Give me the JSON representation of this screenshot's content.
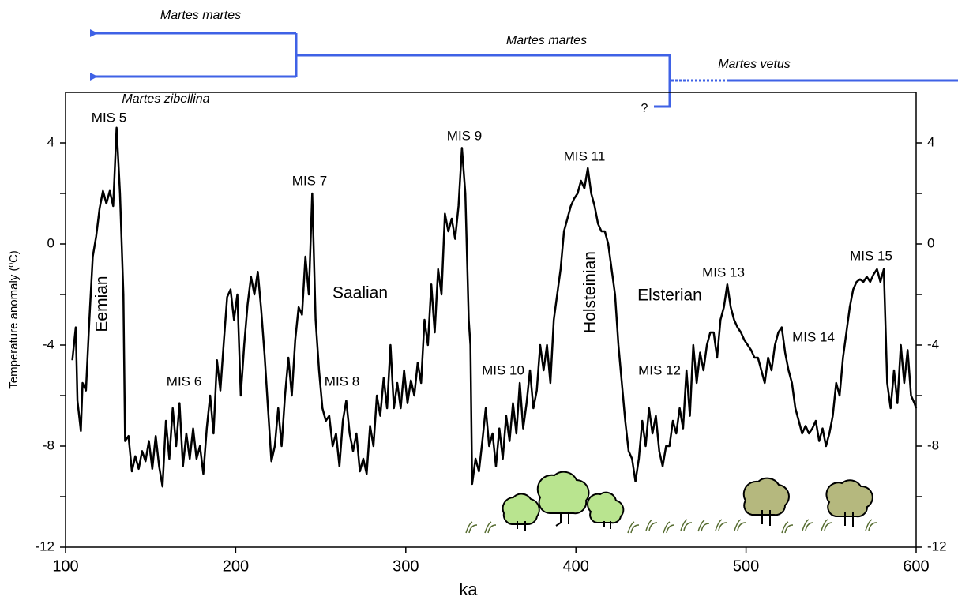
{
  "chart_data": {
    "type": "line",
    "x_label": "ka",
    "y_label": "Temperature anomaly (ºC)",
    "xlim": [
      100,
      600
    ],
    "xticks": [
      100,
      200,
      300,
      400,
      500,
      600
    ],
    "ylim": [
      -12,
      6
    ],
    "yticks": [
      -12,
      -8,
      -4,
      0,
      4
    ],
    "yminorticks": [
      -10,
      -6,
      -2,
      2
    ],
    "right_axis_mirror": true,
    "series": [
      {
        "color": "#000000",
        "x": [
          104,
          106,
          107,
          109,
          110,
          112,
          114,
          116,
          118,
          120,
          122,
          124,
          126,
          128,
          130,
          132,
          134,
          135,
          137,
          139,
          141,
          143,
          145,
          147,
          149,
          151,
          153,
          155,
          157,
          159,
          161,
          163,
          165,
          167,
          169,
          171,
          173,
          175,
          177,
          179,
          181,
          183,
          185,
          187,
          189,
          191,
          193,
          195,
          197,
          199,
          201,
          203,
          205,
          207,
          209,
          211,
          213,
          215,
          217,
          219,
          221,
          223,
          225,
          227,
          229,
          231,
          233,
          235,
          237,
          239,
          241,
          243,
          245,
          247,
          249,
          251,
          253,
          255,
          257,
          259,
          261,
          263,
          265,
          267,
          269,
          271,
          273,
          275,
          277,
          279,
          281,
          283,
          285,
          287,
          289,
          291,
          293,
          295,
          297,
          299,
          301,
          303,
          305,
          307,
          309,
          311,
          313,
          315,
          317,
          319,
          321,
          323,
          325,
          327,
          329,
          331,
          333,
          335,
          337,
          338,
          339,
          341,
          343,
          345,
          347,
          349,
          351,
          353,
          355,
          357,
          359,
          361,
          363,
          365,
          367,
          369,
          371,
          373,
          375,
          377,
          379,
          381,
          383,
          385,
          387,
          389,
          391,
          393,
          395,
          397,
          399,
          401,
          403,
          405,
          407,
          409,
          411,
          413,
          415,
          417,
          419,
          421,
          423,
          425,
          427,
          429,
          431,
          433,
          435,
          437,
          439,
          441,
          443,
          445,
          447,
          449,
          451,
          453,
          455,
          457,
          459,
          461,
          463,
          465,
          467,
          469,
          471,
          473,
          475,
          477,
          479,
          481,
          483,
          485,
          487,
          489,
          491,
          493,
          495,
          497,
          499,
          501,
          503,
          505,
          507,
          509,
          511,
          513,
          515,
          517,
          519,
          521,
          523,
          525,
          527,
          529,
          531,
          533,
          535,
          537,
          539,
          541,
          543,
          545,
          547,
          549,
          551,
          553,
          555,
          557,
          559,
          561,
          563,
          565,
          567,
          569,
          571,
          573,
          575,
          577,
          579,
          581,
          583,
          585,
          587,
          589,
          591,
          593,
          595,
          597,
          599,
          600
        ],
        "values": [
          -4.6,
          -3.3,
          -6.2,
          -7.4,
          -5.5,
          -5.8,
          -3.0,
          -0.5,
          0.3,
          1.4,
          2.1,
          1.6,
          2.1,
          1.5,
          4.6,
          2.0,
          -2,
          -7.8,
          -7.6,
          -9.0,
          -8.4,
          -8.9,
          -8.2,
          -8.6,
          -7.8,
          -8.9,
          -7.6,
          -8.8,
          -9.6,
          -7.0,
          -8.5,
          -6.5,
          -8.0,
          -6.3,
          -8.8,
          -7.5,
          -8.5,
          -7.3,
          -8.5,
          -8.0,
          -9.1,
          -7.3,
          -6.0,
          -7.5,
          -4.6,
          -5.8,
          -3.9,
          -2.1,
          -1.8,
          -3.0,
          -2.0,
          -6.0,
          -4.0,
          -2.4,
          -1.3,
          -2.0,
          -1.1,
          -2.6,
          -4.4,
          -6.5,
          -8.6,
          -8.0,
          -6.5,
          -8.0,
          -6.0,
          -4.5,
          -6.0,
          -3.8,
          -2.5,
          -2.8,
          -0.5,
          -2.0,
          2.0,
          -3.0,
          -5.0,
          -6.5,
          -7.0,
          -6.8,
          -8.0,
          -7.5,
          -8.8,
          -7.0,
          -6.2,
          -7.5,
          -8.2,
          -7.5,
          -9.0,
          -8.5,
          -9.1,
          -7.2,
          -8.0,
          -6.0,
          -6.8,
          -5.3,
          -6.5,
          -4.0,
          -6.5,
          -5.5,
          -6.5,
          -5.0,
          -6.3,
          -5.4,
          -6.0,
          -4.7,
          -5.5,
          -3.0,
          -4.0,
          -1.6,
          -3.5,
          -1.0,
          -2.0,
          1.2,
          0.5,
          1.0,
          0.2,
          1.5,
          3.8,
          2.0,
          -3.0,
          -4.0,
          -9.5,
          -8.5,
          -9.0,
          -7.8,
          -6.5,
          -8.0,
          -7.5,
          -8.8,
          -7.3,
          -8.5,
          -6.8,
          -7.8,
          -6.3,
          -7.5,
          -5.5,
          -7.3,
          -6.3,
          -5.0,
          -6.5,
          -5.8,
          -4.0,
          -5.0,
          -4.0,
          -5.5,
          -3.0,
          -2.0,
          -1.0,
          0.5,
          1.0,
          1.5,
          1.8,
          2.0,
          2.5,
          2.2,
          3.0,
          2.0,
          1.5,
          0.8,
          0.5,
          0.5,
          0,
          -1.0,
          -2.0,
          -4.0,
          -5.5,
          -7.0,
          -8.2,
          -8.5,
          -9.4,
          -8.5,
          -7.0,
          -8.0,
          -6.5,
          -7.5,
          -6.8,
          -8.2,
          -8.8,
          -8.0,
          -8.0,
          -7.0,
          -7.5,
          -6.5,
          -7.3,
          -5.0,
          -6.8,
          -4.0,
          -5.5,
          -4.3,
          -5.0,
          -4.0,
          -3.5,
          -3.5,
          -4.5,
          -3.0,
          -2.5,
          -1.6,
          -2.5,
          -3.0,
          -3.3,
          -3.5,
          -3.8,
          -4.0,
          -4.2,
          -4.5,
          -4.5,
          -5.0,
          -5.5,
          -4.5,
          -5.0,
          -4.0,
          -3.5,
          -3.3,
          -4.3,
          -5.0,
          -5.5,
          -6.5,
          -7.0,
          -7.5,
          -7.2,
          -7.5,
          -7.3,
          -7.0,
          -7.8,
          -7.3,
          -8.0,
          -7.5,
          -6.8,
          -5.5,
          -6.0,
          -4.5,
          -3.5,
          -2.5,
          -1.8,
          -1.5,
          -1.4,
          -1.5,
          -1.3,
          -1.5,
          -1.2,
          -1.0,
          -1.5,
          -1.0,
          -5.5,
          -6.5,
          -5.0,
          -6.3,
          -4.0,
          -5.5,
          -4.2,
          -6.0,
          -6.3,
          -6.5
        ]
      }
    ],
    "annotations": [
      {
        "text": "MIS 5",
        "color": "#999999"
      },
      {
        "text": "MIS 6",
        "color": "#999999"
      },
      {
        "text": "MIS 7",
        "color": "#999999"
      },
      {
        "text": "MIS 8",
        "color": "#999999"
      },
      {
        "text": "MIS 9",
        "color": "#999999"
      },
      {
        "text": "MIS 10",
        "color": "#999999"
      },
      {
        "text": "MIS 11",
        "color": "#999999"
      },
      {
        "text": "MIS 12",
        "color": "#999999"
      },
      {
        "text": "MIS 13",
        "color": "#999999"
      },
      {
        "text": "MIS 14",
        "color": "#999999"
      },
      {
        "text": "MIS 15",
        "color": "#999999"
      },
      {
        "text": "Eemian",
        "color": "#f08a24"
      },
      {
        "text": "Saalian",
        "color": "#3b5ee8"
      },
      {
        "text": "Holsteinian",
        "color": "#f08a24"
      },
      {
        "text": "Elsterian",
        "color": "#3b5ee8"
      }
    ],
    "lineage_labels": [
      "Martes martes",
      "Martes martes",
      "Martes zibellina",
      "Martes vetus",
      "?"
    ]
  }
}
